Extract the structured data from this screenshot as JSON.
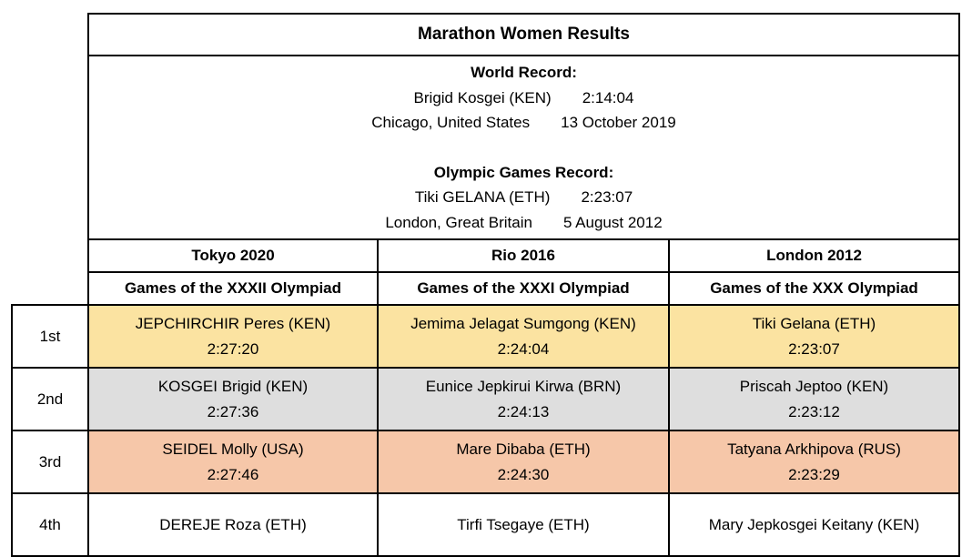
{
  "title": "Marathon Women Results",
  "world_record": {
    "heading": "World Record:",
    "athlete": "Brigid Kosgei (KEN)",
    "time": "2:14:04",
    "location": "Chicago, United States",
    "date": "13 October 2019"
  },
  "olympic_record": {
    "heading": "Olympic Games Record:",
    "athlete": "Tiki GELANA (ETH)",
    "time": "2:23:07",
    "location": "London, Great Britain",
    "date": "5 August 2012"
  },
  "games": [
    {
      "name": "Tokyo 2020",
      "olympiad": "Games of the XXXII Olympiad"
    },
    {
      "name": "Rio 2016",
      "olympiad": "Games of the XXXI Olympiad"
    },
    {
      "name": "London 2012",
      "olympiad": "Games of the XXX Olympiad"
    }
  ],
  "rows": [
    {
      "place": "1st",
      "color": "#fbe3a1",
      "results": [
        {
          "athlete": "JEPCHIRCHIR Peres (KEN)",
          "time": "2:27:20"
        },
        {
          "athlete": "Jemima Jelagat Sumgong (KEN)",
          "time": "2:24:04"
        },
        {
          "athlete": "Tiki Gelana (ETH)",
          "time": "2:23:07"
        }
      ]
    },
    {
      "place": "2nd",
      "color": "#dedede",
      "results": [
        {
          "athlete": "KOSGEI Brigid (KEN)",
          "time": "2:27:36"
        },
        {
          "athlete": "Eunice Jepkirui Kirwa (BRN)",
          "time": "2:24:13"
        },
        {
          "athlete": "Priscah Jeptoo (KEN)",
          "time": "2:23:12"
        }
      ]
    },
    {
      "place": "3rd",
      "color": "#f6c7a9",
      "results": [
        {
          "athlete": "SEIDEL Molly (USA)",
          "time": "2:27:46"
        },
        {
          "athlete": "Mare Dibaba (ETH)",
          "time": "2:24:30"
        },
        {
          "athlete": "Tatyana Arkhipova (RUS)",
          "time": "2:23:29"
        }
      ]
    },
    {
      "place": "4th",
      "color": "#ffffff",
      "results": [
        {
          "athlete": "DEREJE Roza (ETH)",
          "time": ""
        },
        {
          "athlete": "Tirfi Tsegaye (ETH)",
          "time": ""
        },
        {
          "athlete": "Mary Jepkosgei Keitany (KEN)",
          "time": ""
        }
      ]
    }
  ]
}
